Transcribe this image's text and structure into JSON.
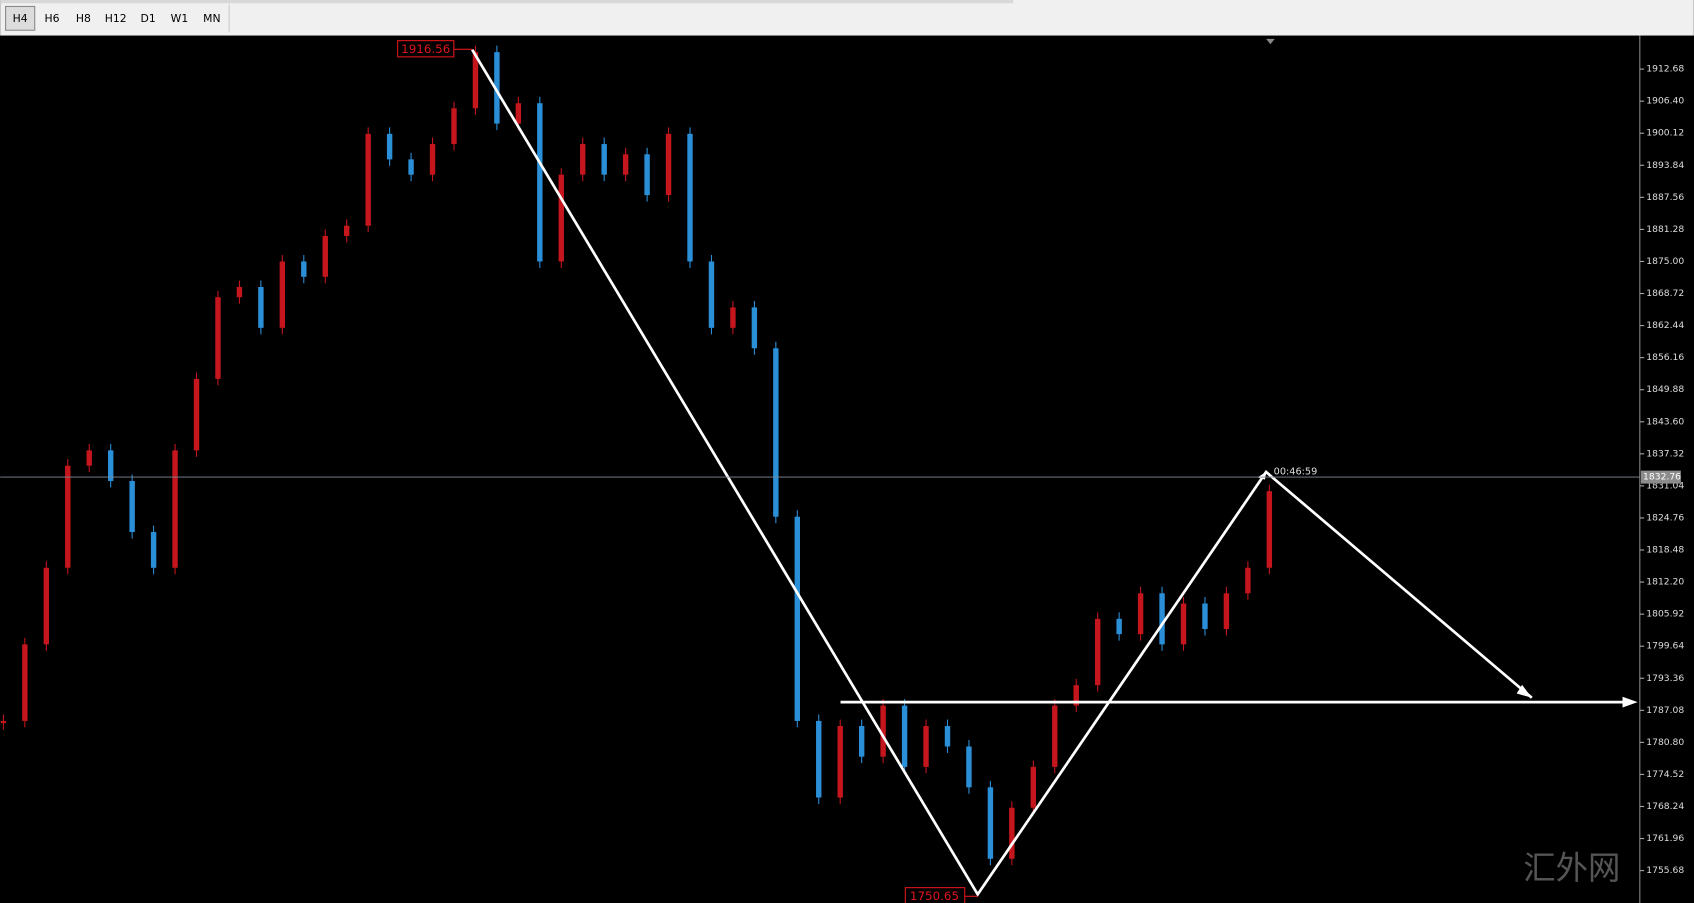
{
  "toolbar": {
    "timeframes": [
      "H4",
      "H6",
      "H8",
      "H12",
      "D1",
      "W1",
      "MN"
    ],
    "selected": 0
  },
  "chart_data": {
    "type": "candlestick",
    "closes": [
      1785,
      1800,
      1815,
      1835,
      1838,
      1832,
      1822,
      1815,
      1838,
      1852,
      1868,
      1870,
      1862,
      1875,
      1872,
      1880,
      1882,
      1900,
      1895,
      1892,
      1898,
      1905,
      1916,
      1902,
      1906,
      1875,
      1892,
      1898,
      1892,
      1896,
      1888,
      1900,
      1875,
      1862,
      1866,
      1858,
      1825,
      1785,
      1770,
      1784,
      1778,
      1788,
      1776,
      1784,
      1780,
      1772,
      1758,
      1768,
      1776,
      1788,
      1792,
      1805,
      1802,
      1810,
      1800,
      1808,
      1803,
      1810,
      1815,
      1830
    ],
    "up_color": "#c4161c",
    "down_color": "#2b8fd8",
    "ylim": [
      1749.76,
      1918.6
    ],
    "yticks": [
      1912.68,
      {
        "value": 1906.4,
        "label": "1906.40"
      },
      1900.12,
      1893.84,
      1887.56,
      1881.28,
      {
        "value": 1875,
        "label": "1875.00"
      },
      1868.72,
      1862.44,
      1856.16,
      1849.88,
      {
        "value": 1843.6,
        "label": "1843.60"
      },
      1837.32,
      1831.04,
      1824.76,
      1818.48,
      {
        "value": 1812.2,
        "label": "1812.20"
      },
      1805.92,
      1799.64,
      1793.36,
      1787.08,
      {
        "value": 1780.8,
        "label": "1780.80"
      },
      1774.52,
      1768.24,
      1761.96,
      1755.68
    ],
    "current_price": 1832.76,
    "timer": "00:46:59",
    "high_label": 1916.56,
    "low_label": 1750.65
  },
  "watermark": "汇外网"
}
